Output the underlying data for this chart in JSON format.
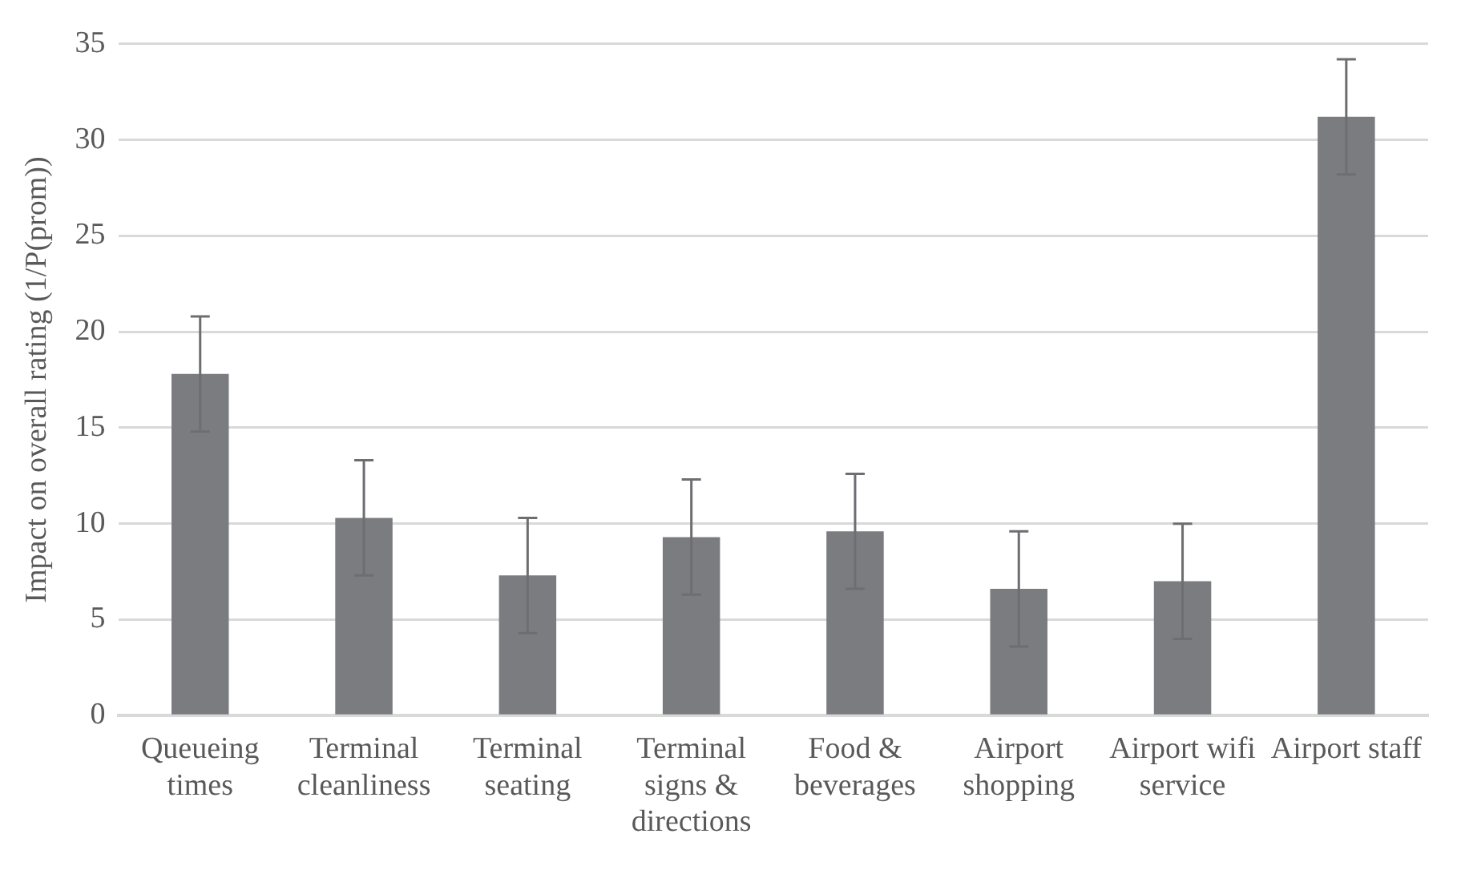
{
  "chart_data": {
    "type": "bar",
    "ylabel": "Impact on overall rating (1/P(prom))",
    "categories": [
      "Queueing times",
      "Terminal cleanliness",
      "Terminal seating",
      "Terminal signs & directions",
      "Food & beverages",
      "Airport shopping",
      "Airport wifi service",
      "Airport staff"
    ],
    "values": [
      17.8,
      10.3,
      7.3,
      9.3,
      9.6,
      6.6,
      7.0,
      31.2
    ],
    "errors": [
      3.0,
      3.0,
      3.0,
      3.0,
      3.0,
      3.0,
      3.0,
      3.0
    ],
    "color": "#7b7c80",
    "ylim": [
      0,
      35
    ],
    "yticks": [
      0,
      5,
      10,
      15,
      20,
      25,
      30,
      35
    ],
    "grid": "y",
    "legend": false
  }
}
